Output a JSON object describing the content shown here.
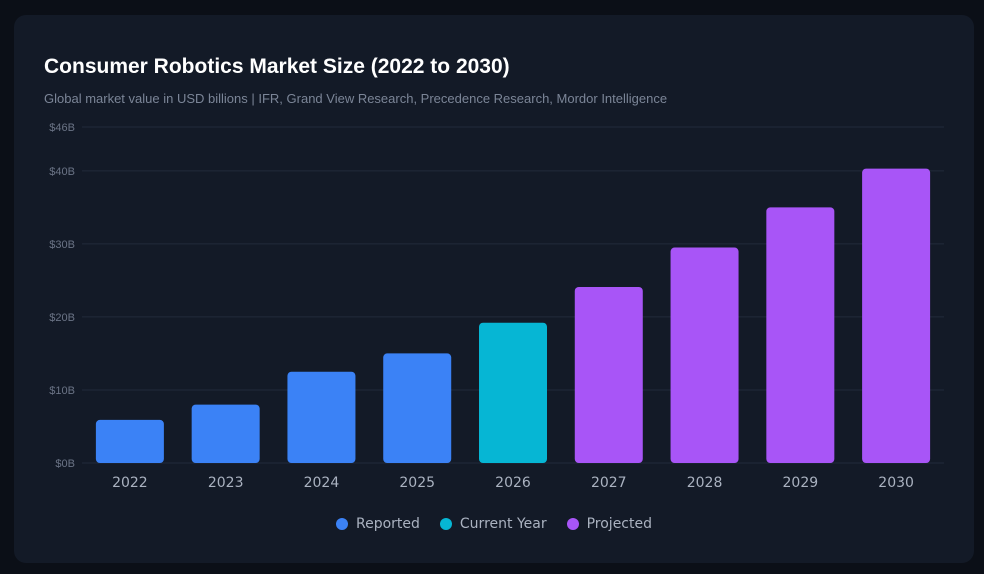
{
  "chart_data": {
    "type": "bar",
    "title": "Consumer Robotics Market Size (2022 to 2030)",
    "subtitle": "Global market value in USD billions | IFR, Grand View Research, Precedence Research, Mordor Intelligence",
    "categories": [
      "2022",
      "2023",
      "2024",
      "2025",
      "2026",
      "2027",
      "2028",
      "2029",
      "2030"
    ],
    "values": [
      5.9,
      8.0,
      12.5,
      15.0,
      19.2,
      24.1,
      29.5,
      35.0,
      40.3
    ],
    "status": [
      "Reported",
      "Reported",
      "Reported",
      "Reported",
      "Current Year",
      "Projected",
      "Projected",
      "Projected",
      "Projected"
    ],
    "ylim": [
      0,
      46
    ],
    "yticks": [
      0,
      10,
      20,
      30,
      40,
      46
    ],
    "ytick_labels": [
      "$0B",
      "$10B",
      "$20B",
      "$30B",
      "$40B",
      "$46B"
    ],
    "xlabel": "",
    "ylabel": "",
    "grid": true,
    "legend": {
      "placement": "bottom",
      "entries": [
        {
          "name": "Reported",
          "color": "#3b82f6"
        },
        {
          "name": "Current Year",
          "color": "#06b6d4"
        },
        {
          "name": "Projected",
          "color": "#a855f7"
        }
      ]
    }
  }
}
